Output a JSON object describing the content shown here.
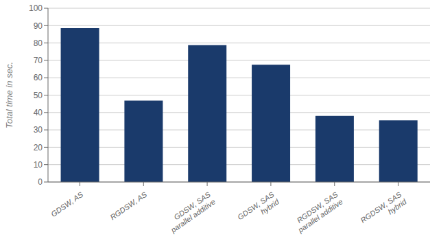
{
  "chart_data": {
    "type": "bar",
    "categories": [
      "GDSW, AS",
      "RGDSW, AS",
      "GDSW, SAS\nparallel additive",
      "GDSW, SAS\nhybrid",
      "RGDSW, SAS\nparallel additive",
      "RGDSW, SAS\nhybrid"
    ],
    "values": [
      88.5,
      46.8,
      78.8,
      67.5,
      38.0,
      35.5
    ],
    "color": "#1a3a6b",
    "ylabel": "Total time in sec.",
    "ylim": [
      0,
      100
    ],
    "yticks": [
      0,
      10,
      20,
      30,
      40,
      50,
      60,
      70,
      80,
      90,
      100
    ],
    "grid": true
  }
}
